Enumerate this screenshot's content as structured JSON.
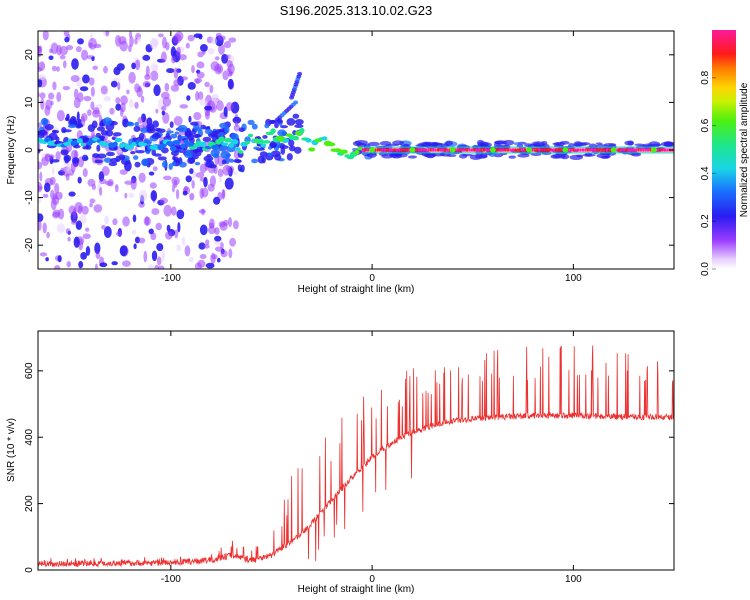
{
  "title": "S196.2025.313.10.02.G23",
  "chart_data": [
    {
      "type": "heatmap",
      "title": "S196.2025.313.10.02.G23",
      "xlabel": "Height of straight line (km)",
      "ylabel": "Frequency (Hz)",
      "xlim": [
        -166,
        150
      ],
      "ylim": [
        -25,
        25
      ],
      "xticks": [
        -100,
        0,
        100
      ],
      "yticks": [
        -20,
        -10,
        0,
        10,
        20
      ],
      "colorbar": {
        "label": "Normalized spectral amplitude",
        "range": [
          0,
          1
        ],
        "ticks": [
          0,
          0.2,
          0.4,
          0.6,
          0.8
        ],
        "tick_labels": [
          "0.0",
          "0.2",
          "0.4",
          "0.6",
          "0.8"
        ],
        "colormap": "rainbow: white-purple-blue-cyan-green-yellow-red-magenta"
      },
      "ridge": {
        "description": "dominant frequency track vs height",
        "x": [
          -160,
          -140,
          -120,
          -100,
          -90,
          -80,
          -75,
          -70,
          -65,
          -60,
          -55,
          -50,
          -45,
          -40,
          -35,
          -30,
          -25,
          -20,
          -15,
          -12,
          -8,
          -4,
          0,
          20,
          60,
          100,
          150
        ],
        "y": [
          1.5,
          1.8,
          1.2,
          1.0,
          1.2,
          0.5,
          2.0,
          1.5,
          0.2,
          2.5,
          1.0,
          3.5,
          2.0,
          3.0,
          3.5,
          0.5,
          2.5,
          1.0,
          -0.5,
          -1.5,
          0.2,
          0.1,
          0.0,
          0.0,
          0.0,
          0.0,
          0.0
        ]
      },
      "features": [
        {
          "x": [
            -48,
            -38
          ],
          "y": [
            6,
            10
          ],
          "note": "streak rising to ~10 Hz"
        },
        {
          "x": [
            -40,
            -36
          ],
          "y": [
            11,
            16
          ],
          "note": "faint streak up to ~16 Hz"
        }
      ]
    },
    {
      "type": "line",
      "xlabel": "Height of straight line (km)",
      "ylabel": "SNR (10 * v/v)",
      "xlim": [
        -166,
        150
      ],
      "ylim": [
        0,
        720
      ],
      "xticks": [
        -100,
        0,
        100
      ],
      "yticks": [
        0,
        200,
        400,
        600
      ],
      "color": "#ee3030",
      "envelope": {
        "x": [
          -166,
          -100,
          -80,
          -70,
          -60,
          -50,
          -40,
          -30,
          -20,
          -10,
          0,
          10,
          20,
          30,
          40,
          60,
          80,
          100,
          120,
          150
        ],
        "base": [
          18,
          22,
          30,
          45,
          30,
          45,
          85,
          140,
          210,
          280,
          340,
          385,
          415,
          435,
          450,
          460,
          465,
          465,
          462,
          460
        ],
        "peak": [
          35,
          40,
          60,
          95,
          60,
          120,
          290,
          360,
          450,
          500,
          560,
          590,
          610,
          640,
          655,
          665,
          675,
          690,
          675,
          670
        ]
      }
    }
  ]
}
